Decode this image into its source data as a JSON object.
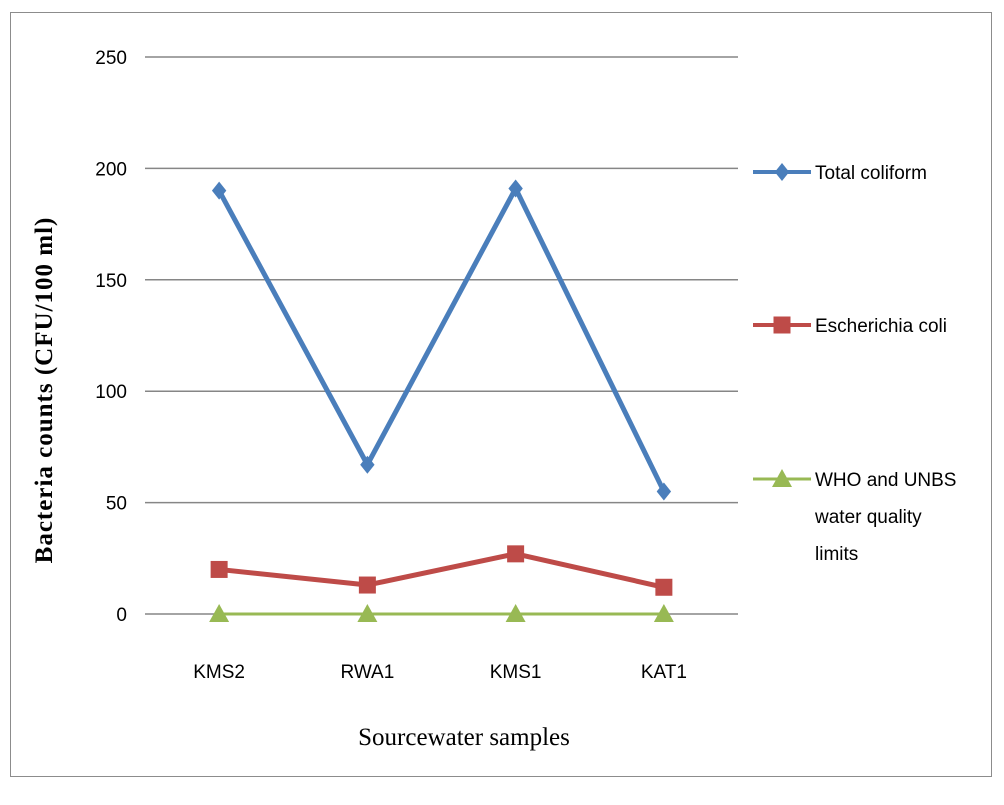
{
  "chart_data": {
    "type": "line",
    "title": "",
    "xlabel": "Sourcewater samples",
    "ylabel": "Bacteria counts (CFU/100 ml)",
    "categories": [
      "KMS2",
      "RWA1",
      "KMS1",
      "KAT1"
    ],
    "ylim": [
      0,
      250
    ],
    "yticks": [
      0,
      50,
      100,
      150,
      200,
      250
    ],
    "ytick_labels": [
      "0",
      "50",
      "100",
      "150",
      "200",
      "250"
    ],
    "grid": "horizontal",
    "legend_position": "right",
    "series": [
      {
        "name": "Total coliform",
        "values": [
          190,
          67,
          191,
          55
        ],
        "color": "#4a7ebb",
        "marker": "diamond"
      },
      {
        "name": "Escherichia coli",
        "values": [
          20,
          13,
          27,
          12
        ],
        "color": "#be4b48",
        "marker": "square"
      },
      {
        "name": "WHO and UNBS water quality limits",
        "legend_lines": [
          "WHO and UNBS",
          "water quality",
          "limits"
        ],
        "values": [
          0,
          0,
          0,
          0
        ],
        "color": "#98b954",
        "marker": "triangle"
      }
    ]
  }
}
